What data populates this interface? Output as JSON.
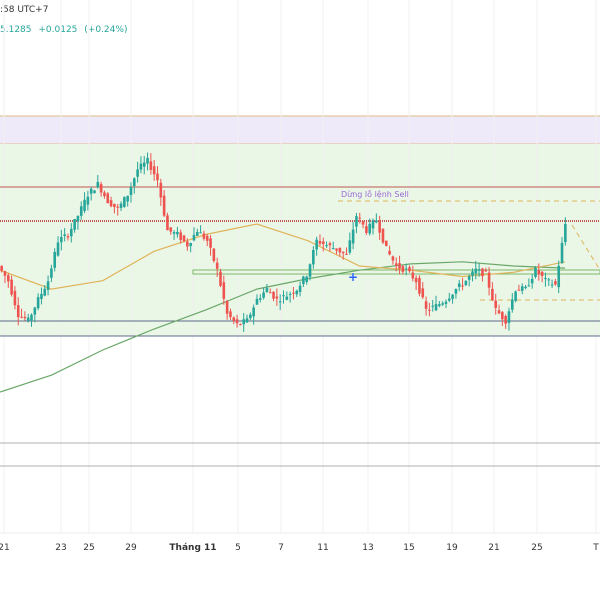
{
  "header": {
    "time": ":58 UTC+7",
    "price": "5.1285",
    "change": "+0.0125",
    "change_pct": "(+0.24%)"
  },
  "chart_data": {
    "type": "candlestick",
    "title": "",
    "x_tick_labels": [
      "21",
      "23",
      "25",
      "29",
      "Tháng 11",
      "5",
      "7",
      "11",
      "13",
      "15",
      "19",
      "21",
      "25",
      "T"
    ],
    "annotation": "Dừng lỗ lệnh Sell",
    "closes": [
      40,
      33,
      17,
      14,
      24,
      33,
      52,
      55,
      64,
      74,
      79,
      71,
      67,
      74,
      86,
      90,
      81,
      57,
      55,
      50,
      57,
      52,
      38,
      17,
      12,
      14,
      24,
      29,
      24,
      26,
      29,
      36,
      52,
      50,
      48,
      45,
      64,
      57,
      62,
      48,
      40,
      38,
      33,
      19,
      21,
      24,
      29,
      33,
      38,
      36,
      19,
      14,
      29,
      29,
      38,
      33,
      31,
      60
    ],
    "ma_fast": [
      38,
      29,
      33,
      47,
      55,
      60,
      52,
      40,
      38,
      35,
      37,
      42
    ],
    "ma_slow": [
      -20,
      -12,
      0,
      10,
      19,
      29,
      34,
      38,
      41,
      42,
      40,
      39
    ],
    "levels": {
      "resistance_zone": "#ece6f7",
      "range_zone": "#e8f5e2",
      "red_line_color": "#c0554f",
      "support_color": "#5c6b8a"
    },
    "colors": {
      "up": "#26a69a",
      "down": "#ef5350",
      "ma_fast": "#e0b45a",
      "ma_slow": "#6aa86a"
    },
    "grid": true
  }
}
